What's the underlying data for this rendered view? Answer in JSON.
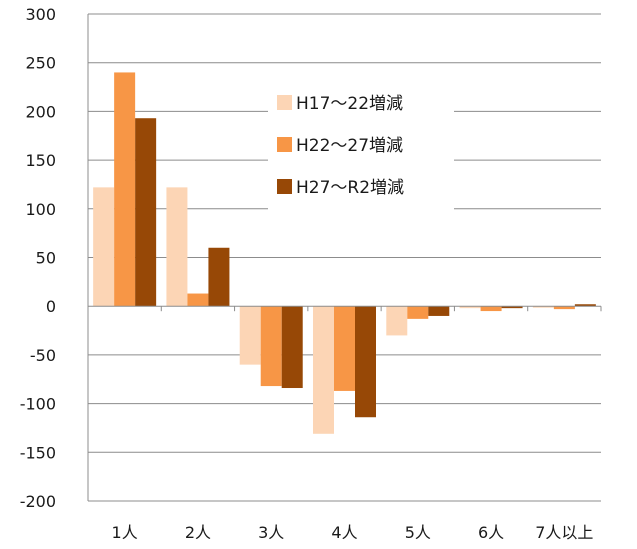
{
  "chart_data": {
    "type": "bar",
    "categories": [
      "1人",
      "2人",
      "3人",
      "4人",
      "5人",
      "6人",
      "7人以上"
    ],
    "series": [
      {
        "name": "H17～22増減",
        "color": "#fcd5b5",
        "values": [
          122,
          122,
          -60,
          -131,
          -30,
          -2,
          0
        ]
      },
      {
        "name": "H22～27増減",
        "color": "#f79646",
        "values": [
          240,
          13,
          -82,
          -87,
          -13,
          -5,
          -3
        ]
      },
      {
        "name": "H27～R2増減",
        "color": "#974806",
        "values": [
          193,
          60,
          -84,
          -114,
          -10,
          -2,
          2
        ]
      }
    ],
    "ylim": [
      -200,
      300
    ],
    "yticks": [
      300,
      250,
      200,
      150,
      100,
      50,
      0,
      -50,
      -100,
      -150,
      -200
    ],
    "grid": true,
    "legend_position": "center-top"
  }
}
